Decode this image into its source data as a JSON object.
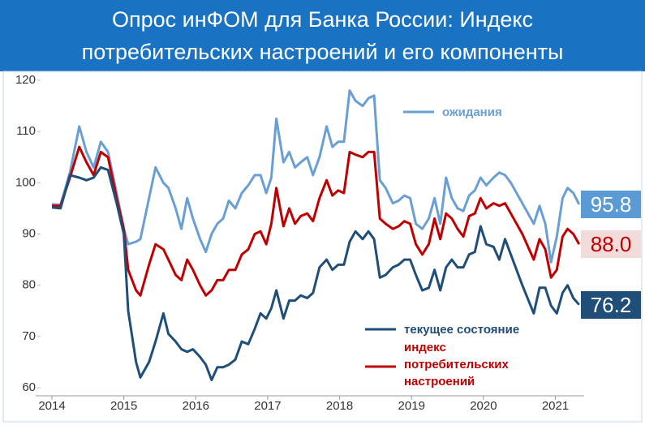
{
  "chart_data": {
    "type": "line",
    "title": "Опрос инФОМ для Банка России: Индекс потребительских настроений и его компоненты",
    "x": [
      2014.0,
      2014.12,
      2014.25,
      2014.38,
      2014.48,
      2014.58,
      2014.68,
      2014.78,
      2014.9,
      2015.0,
      2015.06,
      2015.17,
      2015.23,
      2015.35,
      2015.44,
      2015.55,
      2015.62,
      2015.72,
      2015.8,
      2015.88,
      2015.96,
      2016.06,
      2016.14,
      2016.22,
      2016.3,
      2016.38,
      2016.46,
      2016.55,
      2016.64,
      2016.73,
      2016.82,
      2016.9,
      2016.98,
      2017.05,
      2017.12,
      2017.22,
      2017.3,
      2017.38,
      2017.46,
      2017.55,
      2017.63,
      2017.72,
      2017.82,
      2017.9,
      2017.98,
      2018.06,
      2018.14,
      2018.22,
      2018.32,
      2018.4,
      2018.48,
      2018.56,
      2018.64,
      2018.74,
      2018.82,
      2018.9,
      2018.98,
      2019.06,
      2019.15,
      2019.24,
      2019.32,
      2019.4,
      2019.48,
      2019.56,
      2019.64,
      2019.72,
      2019.8,
      2019.88,
      2019.96,
      2020.04,
      2020.14,
      2020.22,
      2020.3,
      2020.38,
      2020.54,
      2020.7,
      2020.78,
      2020.86,
      2020.94,
      2021.02,
      2021.1,
      2021.17,
      2021.25,
      2021.33
    ],
    "series": [
      {
        "name": "ожидания",
        "color": "#6a9fd4",
        "end_label": "95.8",
        "values": [
          95.8,
          95.7,
          102,
          111,
          106,
          103,
          108,
          106,
          98,
          91,
          88,
          88.5,
          89,
          97,
          103,
          100,
          99,
          95,
          91,
          97,
          93,
          89,
          86.5,
          90,
          92,
          93,
          96.5,
          95,
          98,
          99.5,
          101.5,
          101.5,
          98,
          101,
          112.5,
          104,
          106,
          103,
          104,
          105,
          101.5,
          105,
          111,
          107,
          108,
          108,
          118,
          116,
          115,
          116.5,
          117,
          100.5,
          99,
          96,
          96.5,
          97.5,
          97,
          92,
          91,
          93,
          97,
          92,
          101,
          97,
          95,
          94.5,
          97.5,
          98.5,
          101,
          99.5,
          101,
          102,
          101.5,
          100,
          96,
          92,
          95.5,
          92,
          84.5,
          89.5,
          97,
          99,
          98,
          95.8
        ]
      },
      {
        "name": "индекс потребительских настроений",
        "color": "#c00000",
        "end_label": "88.0",
        "values": [
          95.5,
          95.5,
          101,
          107,
          104,
          101.5,
          106,
          105,
          97,
          91,
          83,
          79,
          78,
          84,
          88,
          87,
          85,
          82,
          81,
          85,
          83,
          80,
          78,
          79,
          81,
          81,
          83,
          83,
          86,
          87,
          90,
          90.5,
          88,
          92,
          99,
          91.5,
          95,
          92,
          93.5,
          94,
          92.5,
          97,
          100.5,
          97.5,
          98.5,
          98,
          106,
          105.5,
          105,
          106,
          106,
          93,
          92,
          91,
          91.5,
          92.5,
          92,
          88,
          86,
          88,
          93,
          89,
          94,
          93,
          91,
          89.5,
          93.5,
          94,
          97,
          95,
          96,
          95.5,
          96,
          94,
          90,
          85,
          89,
          87,
          81.5,
          83,
          89.5,
          91,
          90,
          88.0
        ]
      },
      {
        "name": "текущее состояние",
        "color": "#1f4e79",
        "end_label": "76.2",
        "values": [
          95.2,
          95,
          101.5,
          101,
          100.5,
          101,
          103,
          102.5,
          96,
          90,
          75,
          65,
          62,
          65,
          69,
          74.5,
          70.5,
          69,
          67.5,
          67,
          67.5,
          66,
          64.5,
          61.5,
          64,
          64,
          64.5,
          65.5,
          69,
          68.5,
          71.5,
          74.5,
          73.5,
          75.5,
          79,
          73.5,
          77,
          77,
          78,
          77.5,
          78.5,
          83.5,
          85,
          83,
          84,
          84,
          88.5,
          90.5,
          89,
          90.5,
          89,
          81.5,
          82,
          83.5,
          84,
          85,
          85,
          82,
          79,
          79.5,
          83,
          79,
          83.5,
          85,
          83.5,
          83.5,
          86,
          86.5,
          91.5,
          88,
          87.5,
          85,
          89,
          86,
          80,
          74.5,
          79.5,
          79.5,
          76,
          74.5,
          78.5,
          80,
          77.5,
          76.2
        ]
      }
    ],
    "xlim": [
      2014,
      2021.4
    ],
    "xticks": [
      2014,
      2015,
      2016,
      2017,
      2018,
      2019,
      2020,
      2021
    ],
    "ylim": [
      60,
      120
    ],
    "yticks": [
      60,
      70,
      80,
      90,
      100,
      110,
      120
    ]
  }
}
